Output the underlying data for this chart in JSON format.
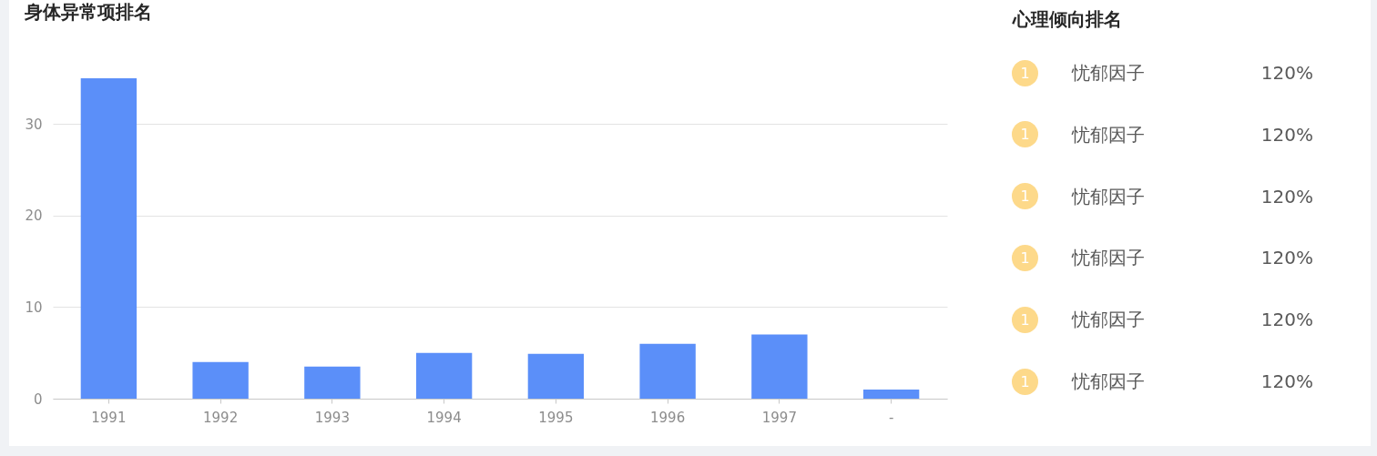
{
  "chart_data": [
    {
      "type": "bar",
      "title": "身体异常项排名",
      "categories": [
        "1991",
        "1992",
        "1993",
        "1994",
        "1995",
        "1996",
        "1997",
        "-"
      ],
      "values": [
        35,
        4,
        3.5,
        5,
        4.9,
        6,
        7,
        1
      ],
      "color": "#5b8ff9",
      "ylim": [
        0,
        35
      ],
      "yticks": [
        0,
        10,
        20,
        30
      ],
      "grid": "y"
    },
    {
      "type": "other",
      "title": "心理倾向排名",
      "annotations": [
        "1",
        "忧郁因子",
        "120%",
        "1",
        "忧郁因子",
        "120%",
        "1",
        "忧郁因子",
        "120%",
        "1",
        "忧郁因子",
        "120%",
        "1",
        "忧郁因子",
        "120%",
        "1",
        "忧郁因子",
        "120%"
      ]
    }
  ]
}
